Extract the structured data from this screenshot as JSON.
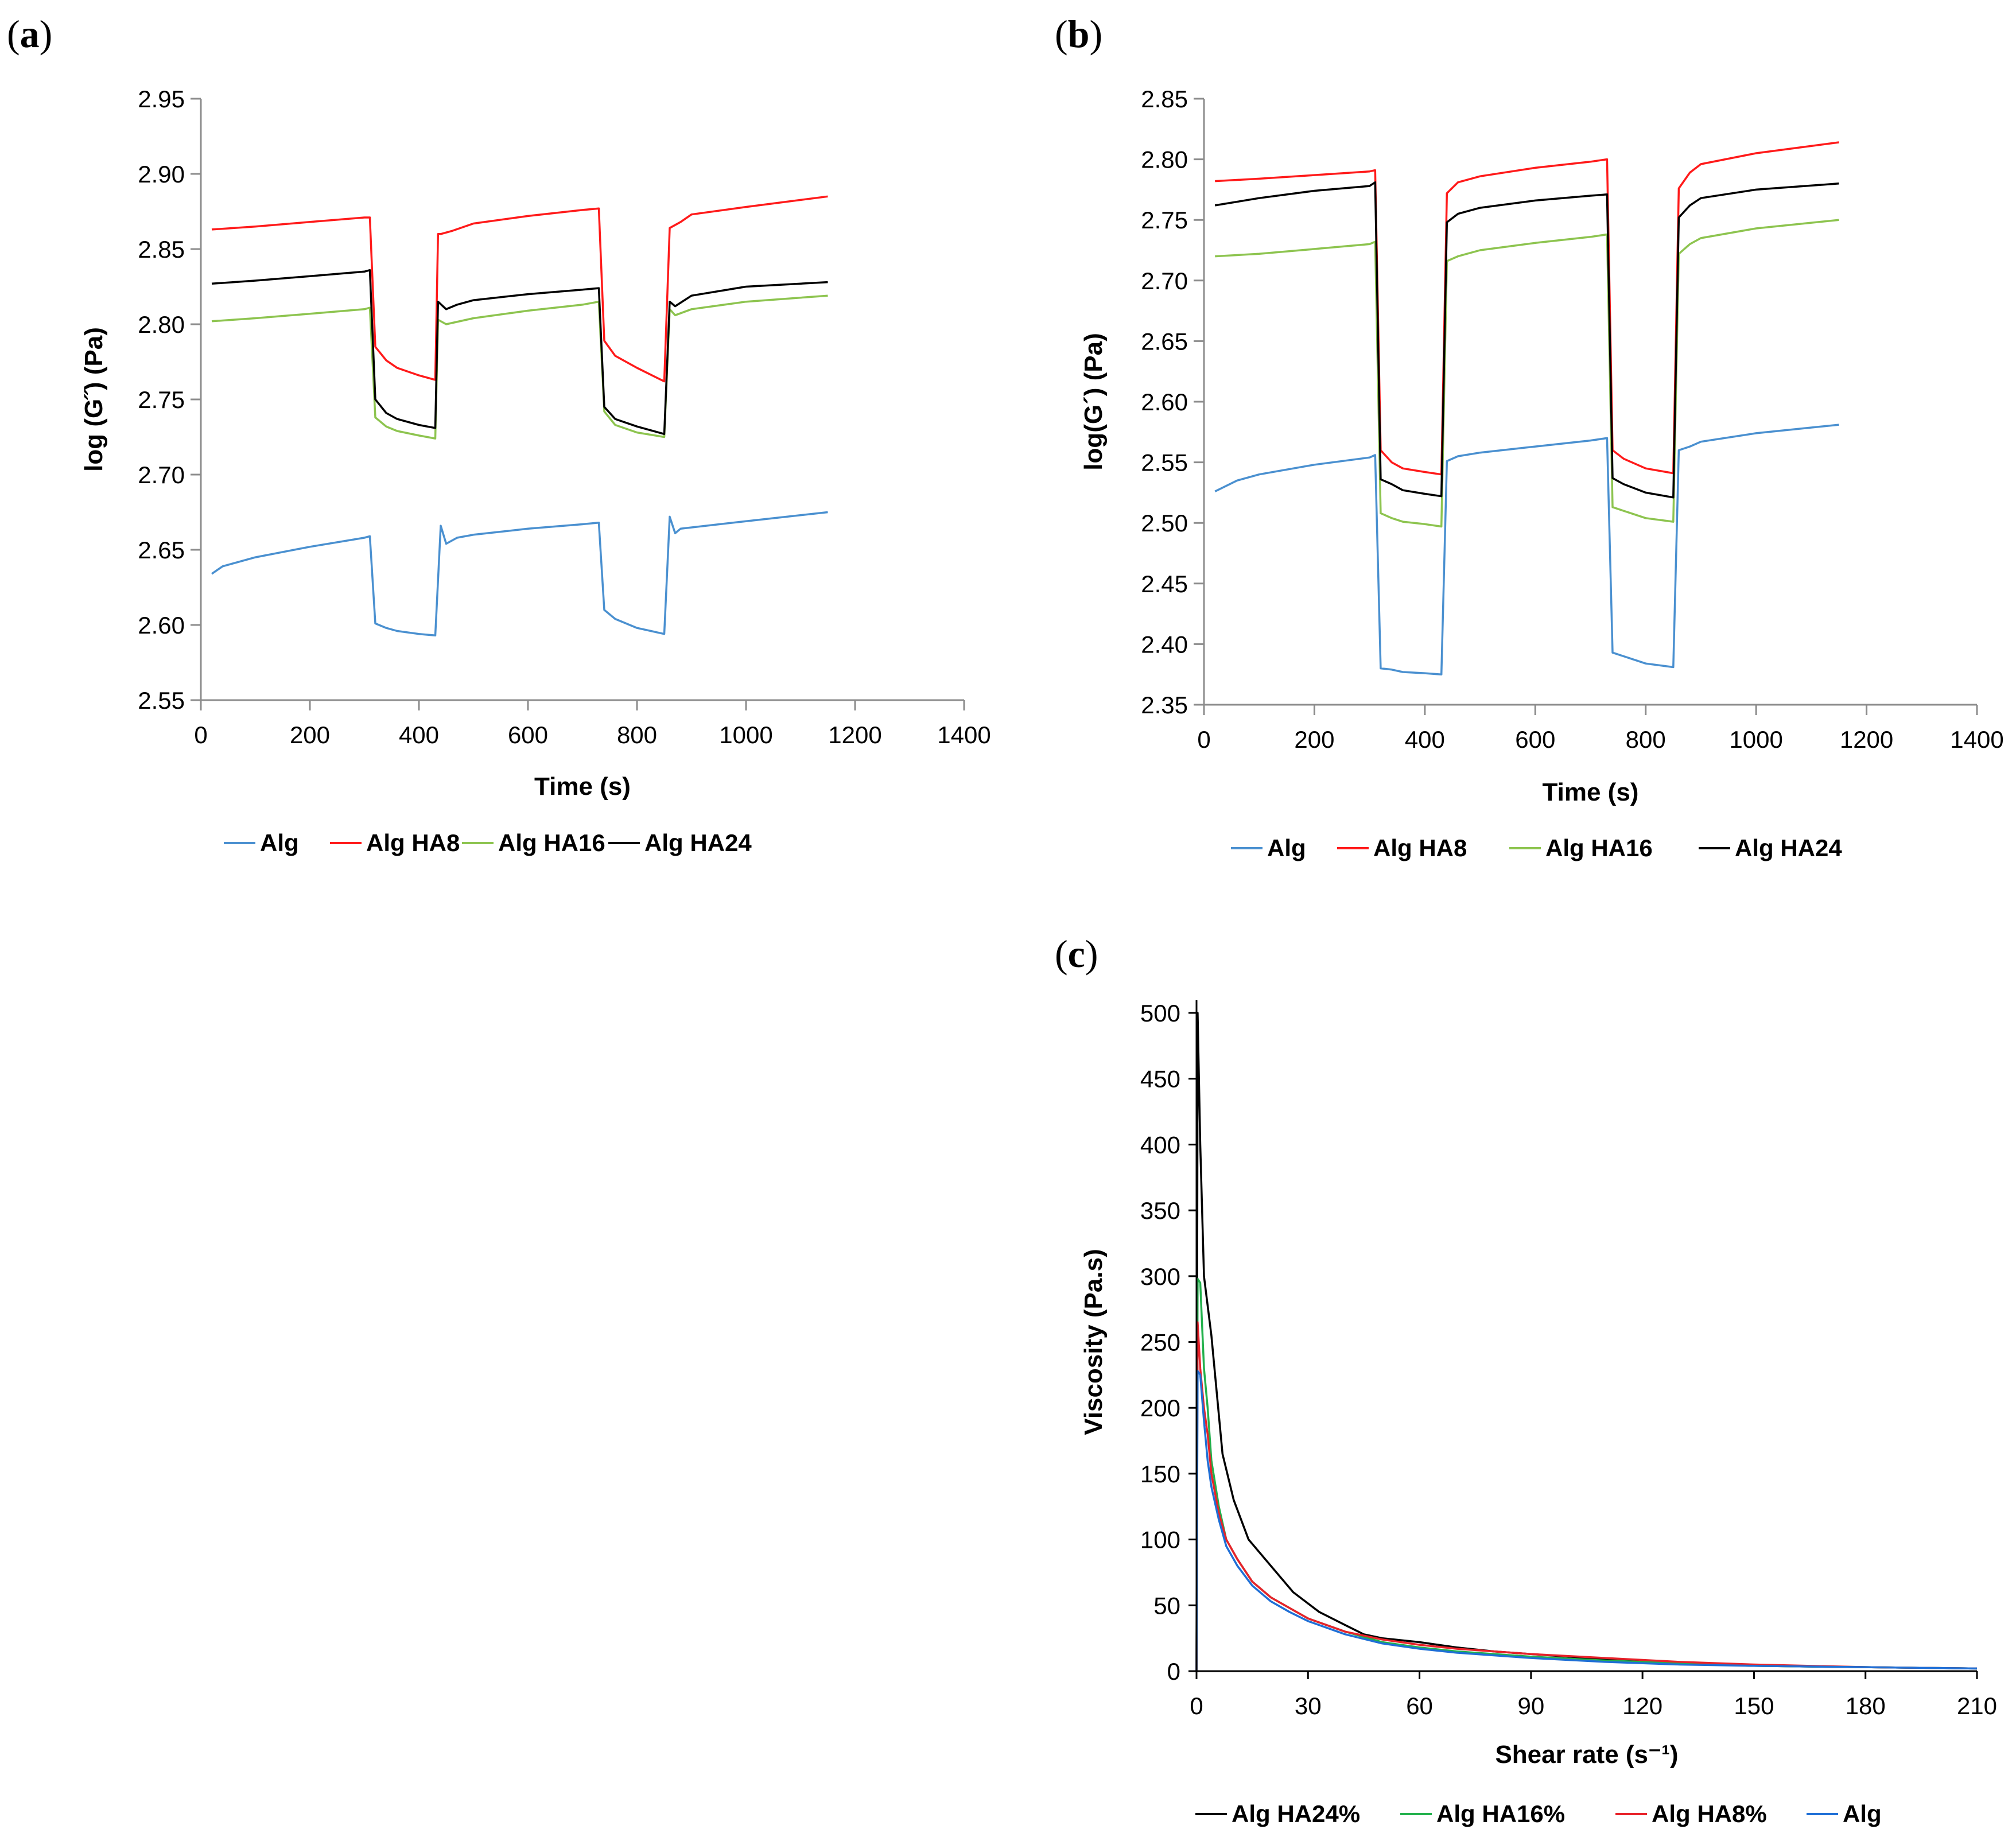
{
  "panels": [
    {
      "key": "a",
      "label_open": "(",
      "label_letter": "a",
      "label_close": ")"
    },
    {
      "key": "b",
      "label_open": "(",
      "label_letter": "b",
      "label_close": ")"
    },
    {
      "key": "c",
      "label_open": "(",
      "label_letter": "c",
      "label_close": ")"
    }
  ],
  "colors": {
    "Alg": "#4a90d0",
    "Alg HA8": "#ff1a1a",
    "Alg HA16": "#8dc44f",
    "Alg HA24": "#000000",
    "Alg HA16% (c)": "#22b14c",
    "Alg HA8% (c)": "#e8222a",
    "Alg (c)": "#1f6fd6"
  },
  "chart_data": [
    {
      "id": "a",
      "type": "line",
      "title": "",
      "xlabel": "Time (s)",
      "ylabel": "log (G˝) (Pa)",
      "xlim": [
        0,
        1400
      ],
      "ylim": [
        2.55,
        2.95
      ],
      "xticks": [
        0,
        200,
        400,
        600,
        800,
        1000,
        1200,
        1400
      ],
      "xtick_labels": [
        "0",
        "200",
        "400",
        "600",
        "800",
        "1000",
        "1200",
        "1400"
      ],
      "yticks": [
        2.55,
        2.6,
        2.65,
        2.7,
        2.75,
        2.8,
        2.85,
        2.9,
        2.95
      ],
      "ytick_labels": [
        "2.55",
        "2.60",
        "2.65",
        "2.70",
        "2.75",
        "2.80",
        "2.85",
        "2.90",
        "2.95"
      ],
      "legend": [
        "Alg",
        "Alg HA8",
        "Alg HA16",
        "Alg HA24"
      ],
      "series": [
        {
          "name": "Alg",
          "x": [
            20,
            40,
            100,
            200,
            300,
            310,
            320,
            340,
            360,
            400,
            430,
            440,
            450,
            470,
            500,
            600,
            700,
            730,
            740,
            760,
            800,
            850,
            860,
            870,
            880,
            1000,
            1150
          ],
          "y": [
            2.634,
            2.639,
            2.645,
            2.652,
            2.658,
            2.659,
            2.601,
            2.598,
            2.596,
            2.594,
            2.593,
            2.666,
            2.654,
            2.658,
            2.66,
            2.664,
            2.667,
            2.668,
            2.61,
            2.604,
            2.598,
            2.594,
            2.672,
            2.661,
            2.664,
            2.669,
            2.675
          ]
        },
        {
          "name": "Alg HA8",
          "x": [
            20,
            100,
            200,
            300,
            310,
            320,
            340,
            360,
            400,
            430,
            435,
            440,
            460,
            500,
            600,
            700,
            730,
            740,
            760,
            800,
            850,
            860,
            880,
            900,
            1000,
            1150
          ],
          "y": [
            2.863,
            2.865,
            2.868,
            2.871,
            2.871,
            2.785,
            2.776,
            2.771,
            2.766,
            2.763,
            2.86,
            2.86,
            2.862,
            2.867,
            2.872,
            2.876,
            2.877,
            2.789,
            2.779,
            2.771,
            2.762,
            2.864,
            2.868,
            2.873,
            2.878,
            2.885
          ]
        },
        {
          "name": "Alg HA16",
          "x": [
            20,
            100,
            200,
            300,
            310,
            320,
            340,
            360,
            400,
            430,
            435,
            450,
            500,
            600,
            700,
            730,
            740,
            760,
            800,
            850,
            860,
            870,
            900,
            1000,
            1150
          ],
          "y": [
            2.802,
            2.804,
            2.807,
            2.81,
            2.811,
            2.738,
            2.732,
            2.729,
            2.726,
            2.724,
            2.803,
            2.8,
            2.804,
            2.809,
            2.813,
            2.815,
            2.742,
            2.733,
            2.728,
            2.725,
            2.81,
            2.806,
            2.81,
            2.815,
            2.819
          ]
        },
        {
          "name": "Alg HA24",
          "x": [
            20,
            100,
            200,
            300,
            310,
            320,
            340,
            360,
            400,
            430,
            435,
            450,
            470,
            500,
            600,
            700,
            730,
            740,
            760,
            800,
            850,
            860,
            870,
            900,
            1000,
            1150
          ],
          "y": [
            2.827,
            2.829,
            2.832,
            2.835,
            2.836,
            2.75,
            2.741,
            2.737,
            2.733,
            2.731,
            2.815,
            2.81,
            2.813,
            2.816,
            2.82,
            2.823,
            2.824,
            2.745,
            2.737,
            2.732,
            2.727,
            2.815,
            2.812,
            2.819,
            2.825,
            2.828
          ]
        }
      ]
    },
    {
      "id": "b",
      "type": "line",
      "title": "",
      "xlabel": "Time (s)",
      "ylabel": "log(G´) (Pa)",
      "xlim": [
        0,
        1400
      ],
      "ylim": [
        2.35,
        2.85
      ],
      "xticks": [
        0,
        200,
        400,
        600,
        800,
        1000,
        1200,
        1400
      ],
      "xtick_labels": [
        "0",
        "200",
        "400",
        "600",
        "800",
        "1000",
        "1200",
        "1400"
      ],
      "yticks": [
        2.35,
        2.4,
        2.45,
        2.5,
        2.55,
        2.6,
        2.65,
        2.7,
        2.75,
        2.8,
        2.85
      ],
      "ytick_labels": [
        "2.35",
        "2.40",
        "2.45",
        "2.50",
        "2.55",
        "2.60",
        "2.65",
        "2.70",
        "2.75",
        "2.80",
        "2.85"
      ],
      "legend": [
        "Alg",
        "Alg HA8",
        "Alg HA16",
        "Alg HA24"
      ],
      "series": [
        {
          "name": "Alg",
          "x": [
            20,
            60,
            100,
            200,
            300,
            310,
            320,
            340,
            360,
            400,
            430,
            440,
            460,
            500,
            600,
            700,
            730,
            740,
            760,
            800,
            850,
            860,
            880,
            900,
            1000,
            1150
          ],
          "y": [
            2.526,
            2.535,
            2.54,
            2.548,
            2.554,
            2.556,
            2.38,
            2.379,
            2.377,
            2.376,
            2.375,
            2.551,
            2.555,
            2.558,
            2.563,
            2.568,
            2.57,
            2.393,
            2.39,
            2.384,
            2.381,
            2.56,
            2.563,
            2.567,
            2.574,
            2.581
          ]
        },
        {
          "name": "Alg HA8",
          "x": [
            20,
            100,
            200,
            300,
            310,
            320,
            340,
            360,
            400,
            430,
            440,
            460,
            500,
            600,
            700,
            730,
            740,
            760,
            800,
            850,
            860,
            880,
            900,
            1000,
            1150
          ],
          "y": [
            2.782,
            2.784,
            2.787,
            2.79,
            2.791,
            2.56,
            2.55,
            2.545,
            2.542,
            2.54,
            2.772,
            2.781,
            2.786,
            2.793,
            2.798,
            2.8,
            2.56,
            2.553,
            2.545,
            2.541,
            2.776,
            2.789,
            2.796,
            2.805,
            2.814
          ]
        },
        {
          "name": "Alg HA16",
          "x": [
            20,
            100,
            200,
            300,
            310,
            320,
            340,
            360,
            400,
            430,
            440,
            460,
            500,
            600,
            700,
            730,
            740,
            760,
            800,
            850,
            860,
            880,
            900,
            1000,
            1150
          ],
          "y": [
            2.72,
            2.722,
            2.726,
            2.73,
            2.732,
            2.508,
            2.504,
            2.501,
            2.499,
            2.497,
            2.716,
            2.72,
            2.725,
            2.731,
            2.736,
            2.738,
            2.513,
            2.51,
            2.504,
            2.501,
            2.722,
            2.73,
            2.735,
            2.743,
            2.75
          ]
        },
        {
          "name": "Alg HA24",
          "x": [
            20,
            100,
            200,
            300,
            310,
            320,
            340,
            360,
            400,
            430,
            440,
            460,
            500,
            600,
            700,
            730,
            740,
            760,
            800,
            850,
            860,
            880,
            900,
            1000,
            1150
          ],
          "y": [
            2.762,
            2.768,
            2.774,
            2.778,
            2.781,
            2.536,
            2.532,
            2.527,
            2.524,
            2.522,
            2.748,
            2.755,
            2.76,
            2.766,
            2.77,
            2.771,
            2.537,
            2.532,
            2.525,
            2.521,
            2.752,
            2.762,
            2.768,
            2.775,
            2.78
          ]
        }
      ]
    },
    {
      "id": "c",
      "type": "line",
      "title": "",
      "xlabel": "Shear rate (s⁻¹)",
      "ylabel": "Viscosity (Pa.s)",
      "xlim": [
        0,
        210
      ],
      "ylim": [
        0,
        500
      ],
      "xticks": [
        0,
        30,
        60,
        90,
        120,
        150,
        180,
        210
      ],
      "xtick_labels": [
        "0",
        "30",
        "60",
        "90",
        "120",
        "150",
        "180",
        "210"
      ],
      "yticks": [
        0,
        50,
        100,
        150,
        200,
        250,
        300,
        350,
        400,
        450,
        500
      ],
      "ytick_labels": [
        "0",
        "50",
        "100",
        "150",
        "200",
        "250",
        "300",
        "350",
        "400",
        "450",
        "500"
      ],
      "legend": [
        "Alg HA24%",
        "Alg HA16%",
        "Alg HA8%",
        "Alg"
      ],
      "series": [
        {
          "name": "Alg HA24%",
          "x": [
            0,
            0.3,
            1,
            2,
            4,
            7,
            10,
            14,
            20,
            26,
            33,
            40,
            45,
            50,
            60,
            70,
            80,
            90,
            100,
            115,
            130,
            150,
            180,
            210
          ],
          "y": [
            0,
            500,
            400,
            300,
            255,
            165,
            130,
            100,
            80,
            60,
            45,
            35,
            28,
            25,
            22,
            18,
            15,
            13,
            11,
            8,
            6,
            4,
            3,
            2
          ]
        },
        {
          "name": "Alg HA16%",
          "x": [
            0,
            0.3,
            1,
            2,
            3,
            4,
            6,
            8,
            11,
            15,
            20,
            25,
            30,
            40,
            50,
            60,
            70,
            80,
            90,
            110,
            130,
            150,
            180,
            210
          ],
          "y": [
            0,
            298,
            295,
            230,
            200,
            160,
            125,
            100,
            85,
            68,
            56,
            48,
            40,
            30,
            22,
            18,
            15,
            13,
            11,
            8,
            6,
            4,
            3,
            2
          ]
        },
        {
          "name": "Alg HA8%",
          "x": [
            0,
            0.3,
            1,
            2,
            3,
            4,
            6,
            8,
            11,
            15,
            20,
            25,
            30,
            40,
            50,
            60,
            70,
            80,
            90,
            110,
            130,
            150,
            180,
            210
          ],
          "y": [
            0,
            265,
            230,
            200,
            180,
            150,
            120,
            100,
            85,
            68,
            56,
            48,
            40,
            30,
            24,
            20,
            17,
            15,
            13,
            10,
            7,
            5,
            3,
            2
          ]
        },
        {
          "name": "Alg",
          "x": [
            0,
            0.3,
            1,
            2,
            3,
            4,
            6,
            8,
            11,
            15,
            20,
            25,
            30,
            40,
            50,
            60,
            70,
            80,
            90,
            110,
            130,
            150,
            180,
            210
          ],
          "y": [
            0,
            228,
            225,
            190,
            160,
            140,
            115,
            95,
            80,
            65,
            53,
            45,
            38,
            28,
            21,
            17,
            14,
            12,
            10,
            7,
            5,
            4,
            3,
            2
          ]
        }
      ]
    }
  ]
}
